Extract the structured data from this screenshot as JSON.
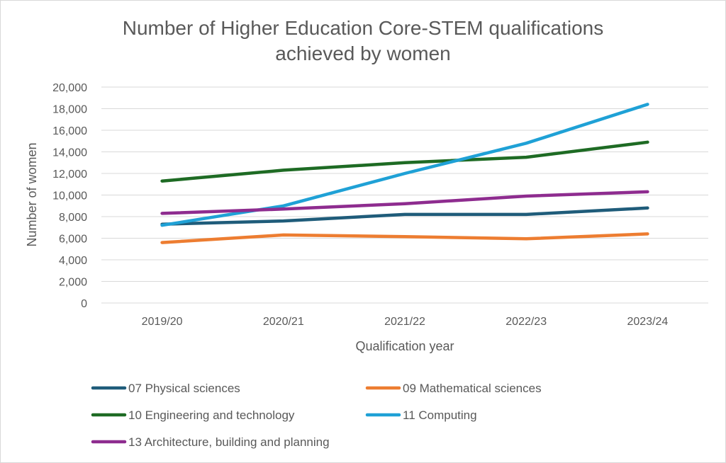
{
  "chart_data": {
    "type": "line",
    "title_lines": [
      "Number of  Higher Education Core-STEM qualifications",
      "achieved by women"
    ],
    "xlabel": "Qualification year",
    "ylabel": "Number of women",
    "categories": [
      "2019/20",
      "2020/21",
      "2021/22",
      "2022/23",
      "2023/24"
    ],
    "ylim": [
      0,
      20000
    ],
    "y_ticks": [
      {
        "value": 0,
        "label": "0"
      },
      {
        "value": 2000,
        "label": "2,000"
      },
      {
        "value": 4000,
        "label": "4,000"
      },
      {
        "value": 6000,
        "label": "6,000"
      },
      {
        "value": 8000,
        "label": "8,000"
      },
      {
        "value": 10000,
        "label": "10,000"
      },
      {
        "value": 12000,
        "label": "12,000"
      },
      {
        "value": 14000,
        "label": "14,000"
      },
      {
        "value": 16000,
        "label": "16,000"
      },
      {
        "value": 18000,
        "label": "18,000"
      },
      {
        "value": 20000,
        "label": "20,000"
      }
    ],
    "grid": true,
    "legend_position": "bottom",
    "series": [
      {
        "name": "07 Physical sciences",
        "color": "#1f5c7a",
        "values": [
          7300,
          7600,
          8200,
          8200,
          8800
        ]
      },
      {
        "name": "09 Mathematical sciences",
        "color": "#ed7d31",
        "values": [
          5600,
          6300,
          6150,
          5950,
          6400
        ]
      },
      {
        "name": "10 Engineering and technology",
        "color": "#1e6b24",
        "values": [
          11300,
          12300,
          13000,
          13500,
          14900
        ]
      },
      {
        "name": "11 Computing",
        "color": "#1fa1d6",
        "values": [
          7200,
          9000,
          12000,
          14800,
          18400
        ]
      },
      {
        "name": "13 Architecture, building and planning",
        "color": "#8e2c8f",
        "values": [
          8300,
          8700,
          9200,
          9900,
          10300
        ]
      }
    ]
  }
}
